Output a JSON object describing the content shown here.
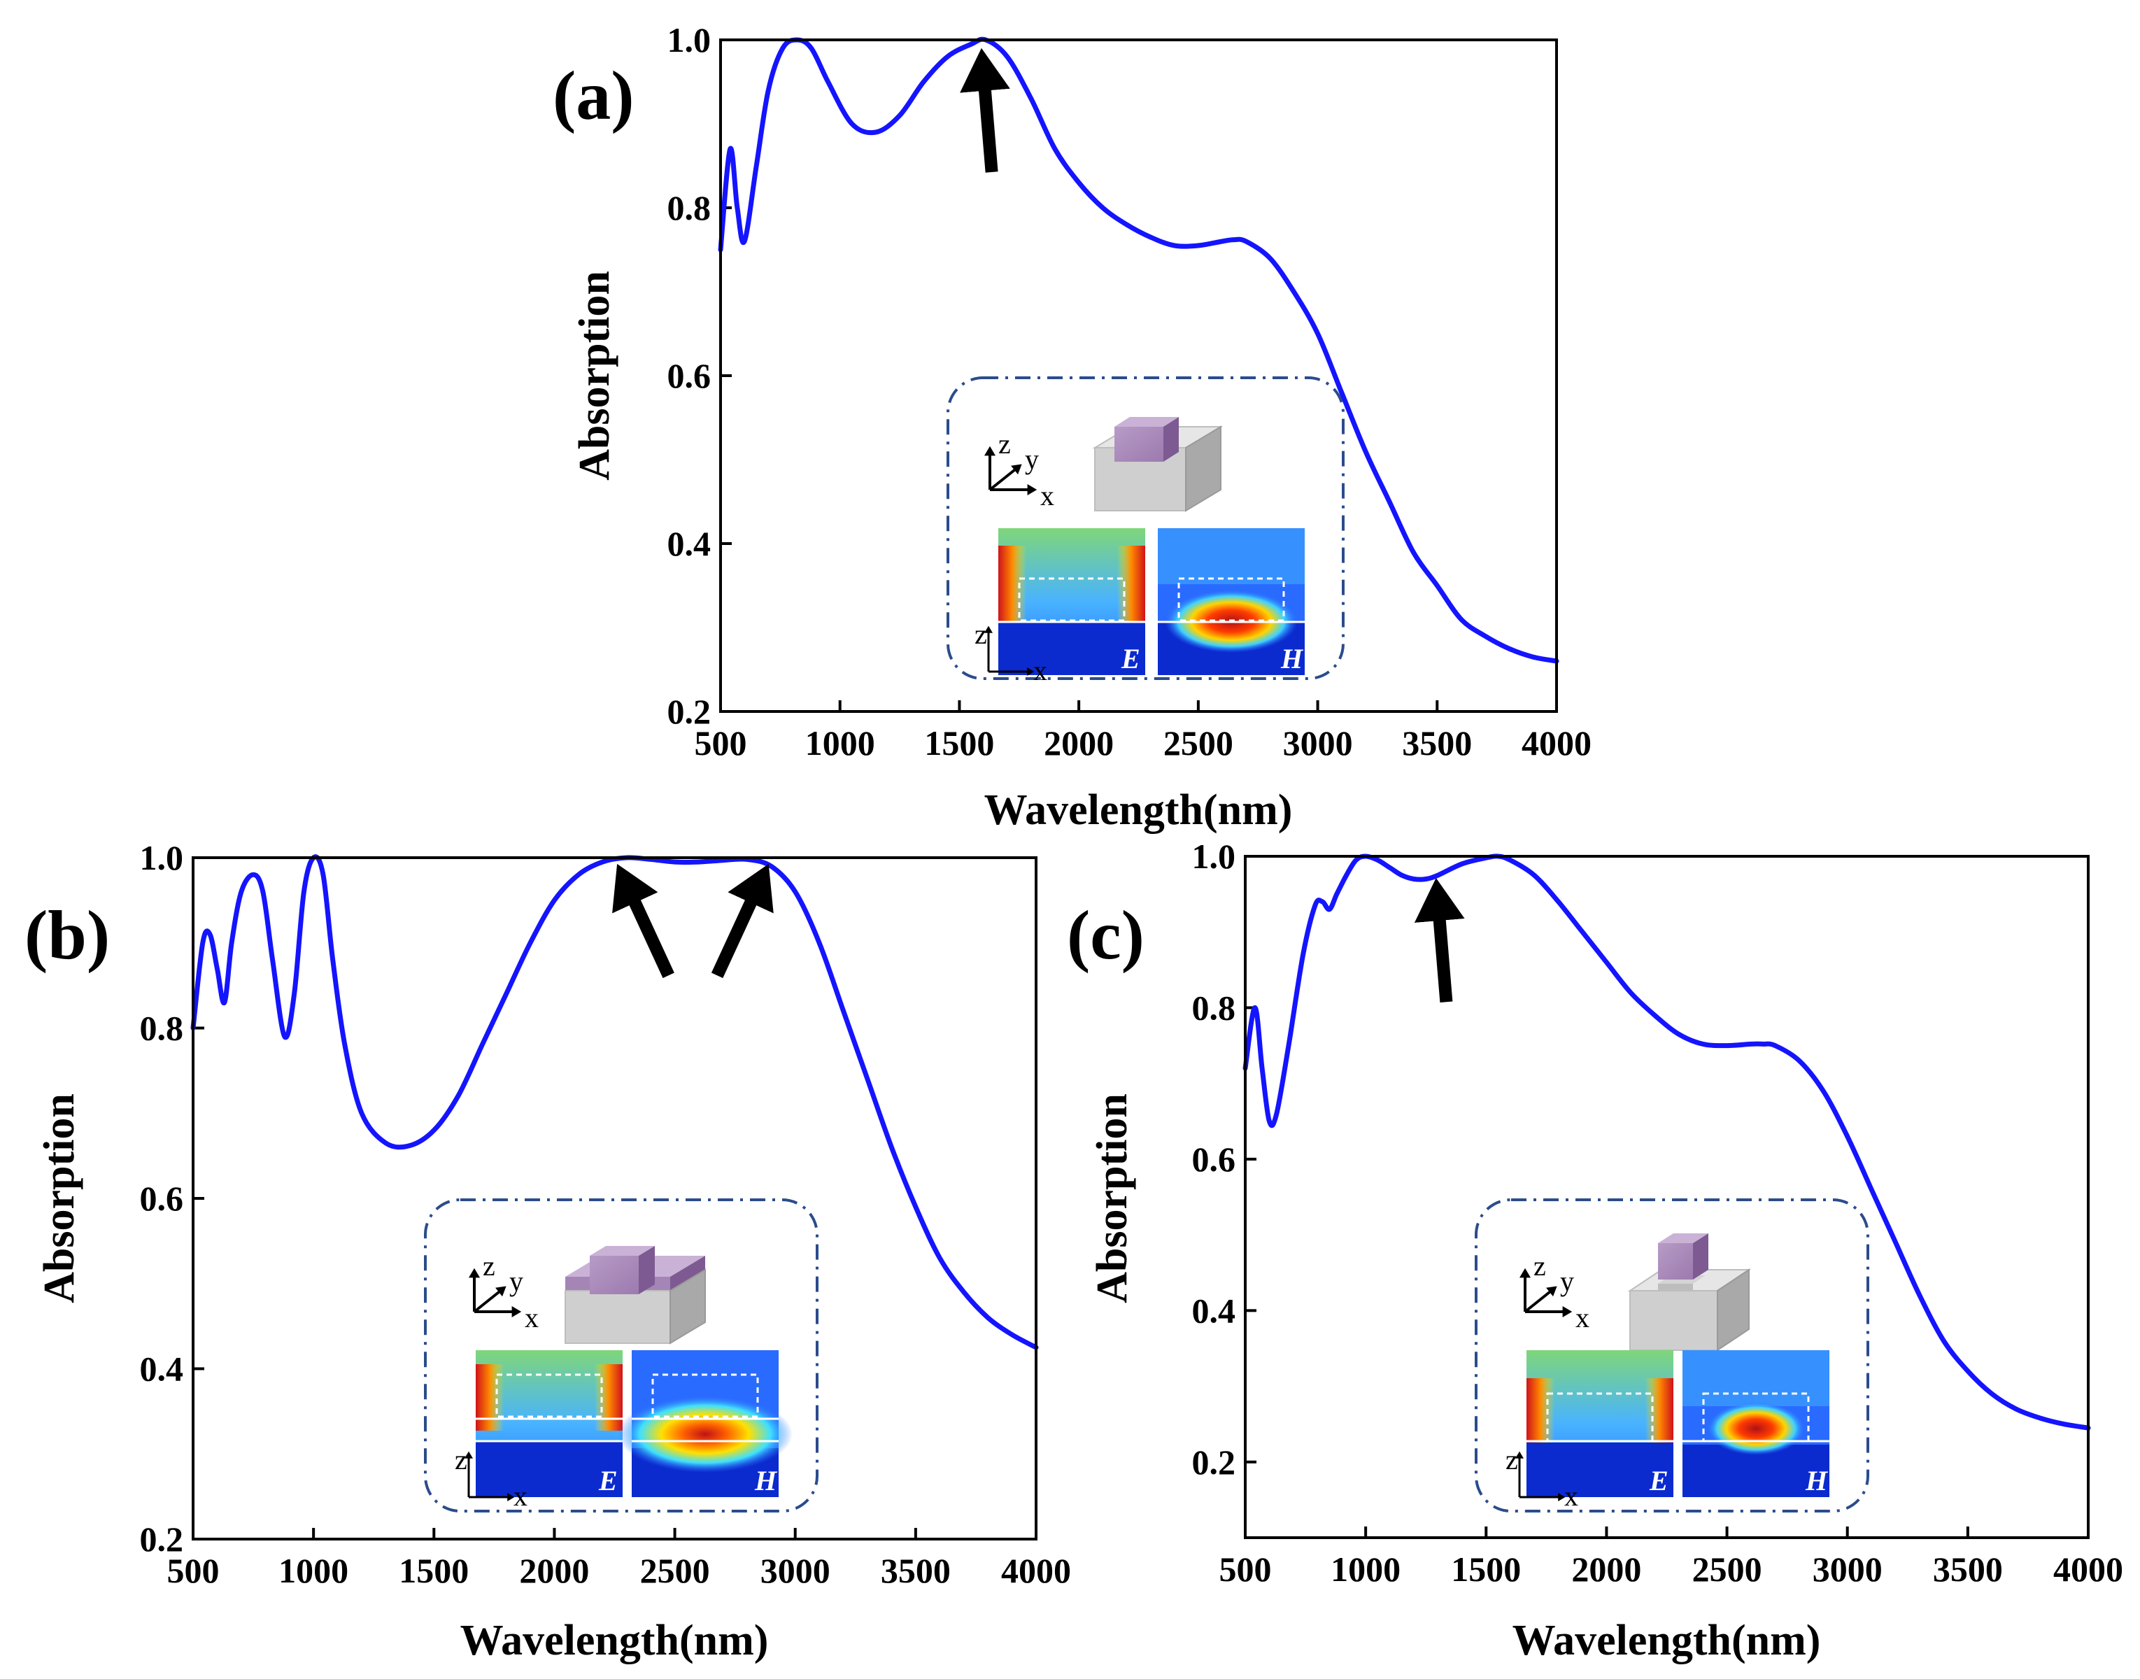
{
  "colors": {
    "curve": "#1414ff",
    "inset_border": "#2b4c8c",
    "arrow": "#000000"
  },
  "chart_data": [
    {
      "panel": "(a)",
      "type": "line",
      "xlabel": "Wavelength(nm)",
      "ylabel": "Absorption",
      "xlim": [
        500,
        4000
      ],
      "ylim": [
        0.2,
        1.0
      ],
      "xticks": [
        500,
        1000,
        1500,
        2000,
        2500,
        3000,
        3500,
        4000
      ],
      "yticks": [
        0.2,
        0.4,
        0.6,
        0.8,
        1.0
      ],
      "series": [
        {
          "name": "absorption",
          "x": [
            500,
            540,
            570,
            600,
            650,
            700,
            760,
            820,
            880,
            950,
            1050,
            1150,
            1250,
            1350,
            1450,
            1550,
            1610,
            1700,
            1800,
            1900,
            2000,
            2100,
            2200,
            2300,
            2400,
            2500,
            2600,
            2650,
            2700,
            2800,
            2900,
            3000,
            3100,
            3200,
            3300,
            3400,
            3500,
            3600,
            3700,
            3800,
            3900,
            4000
          ],
          "y": [
            0.75,
            0.87,
            0.8,
            0.76,
            0.85,
            0.94,
            0.99,
            1.0,
            0.99,
            0.95,
            0.9,
            0.89,
            0.91,
            0.95,
            0.98,
            0.995,
            1.0,
            0.98,
            0.93,
            0.87,
            0.83,
            0.8,
            0.78,
            0.765,
            0.755,
            0.755,
            0.76,
            0.762,
            0.76,
            0.74,
            0.7,
            0.65,
            0.58,
            0.51,
            0.45,
            0.39,
            0.35,
            0.31,
            0.29,
            0.275,
            0.265,
            0.26
          ]
        }
      ],
      "annotations": [
        {
          "type": "arrow",
          "x": 1600,
          "y": 0.98
        }
      ],
      "inset": {
        "axes": [
          "z",
          "y",
          "x"
        ],
        "map_axes": [
          "z",
          "x"
        ],
        "field_labels": [
          "E",
          "H"
        ]
      }
    },
    {
      "panel": "(b)",
      "type": "line",
      "xlabel": "Wavelength(nm)",
      "ylabel": "Absorption",
      "xlim": [
        500,
        4000
      ],
      "ylim": [
        0.2,
        1.0
      ],
      "xticks": [
        500,
        1000,
        1500,
        2000,
        2500,
        3000,
        3500,
        4000
      ],
      "yticks": [
        0.2,
        0.4,
        0.6,
        0.8,
        1.0
      ],
      "series": [
        {
          "name": "absorption",
          "x": [
            500,
            540,
            570,
            600,
            630,
            660,
            700,
            750,
            790,
            830,
            880,
            920,
            960,
            1000,
            1040,
            1080,
            1130,
            1200,
            1300,
            1400,
            1500,
            1600,
            1700,
            1800,
            1900,
            2000,
            2100,
            2200,
            2300,
            2400,
            2500,
            2600,
            2700,
            2800,
            2900,
            3000,
            3100,
            3200,
            3300,
            3400,
            3500,
            3600,
            3700,
            3800,
            3900,
            4000
          ],
          "y": [
            0.8,
            0.9,
            0.91,
            0.87,
            0.83,
            0.9,
            0.96,
            0.98,
            0.96,
            0.88,
            0.79,
            0.84,
            0.96,
            1.0,
            0.98,
            0.88,
            0.78,
            0.7,
            0.665,
            0.662,
            0.68,
            0.72,
            0.78,
            0.84,
            0.9,
            0.95,
            0.98,
            0.995,
            1.0,
            0.998,
            0.995,
            0.995,
            0.997,
            0.998,
            0.99,
            0.96,
            0.9,
            0.82,
            0.74,
            0.66,
            0.59,
            0.53,
            0.49,
            0.46,
            0.44,
            0.425
          ]
        }
      ],
      "annotations": [
        {
          "type": "arrow",
          "x": 2300,
          "y": 0.985
        },
        {
          "type": "arrow",
          "x": 2850,
          "y": 0.985
        }
      ],
      "inset": {
        "axes": [
          "z",
          "y",
          "x"
        ],
        "map_axes": [
          "z",
          "x"
        ],
        "field_labels": [
          "E",
          "H"
        ]
      }
    },
    {
      "panel": "(c)",
      "type": "line",
      "xlabel": "Wavelength(nm)",
      "ylabel": "Absorption",
      "xlim": [
        500,
        4000
      ],
      "ylim": [
        0.1,
        1.0
      ],
      "xticks": [
        500,
        1000,
        1500,
        2000,
        2500,
        3000,
        3500,
        4000
      ],
      "yticks": [
        0.2,
        0.4,
        0.6,
        0.8,
        1.0
      ],
      "series": [
        {
          "name": "absorption",
          "x": [
            500,
            540,
            570,
            600,
            630,
            680,
            740,
            790,
            820,
            850,
            880,
            920,
            960,
            1000,
            1050,
            1100,
            1150,
            1200,
            1250,
            1300,
            1400,
            1500,
            1550,
            1600,
            1700,
            1800,
            1900,
            2000,
            2100,
            2200,
            2300,
            2400,
            2500,
            2600,
            2650,
            2700,
            2800,
            2900,
            3000,
            3100,
            3200,
            3300,
            3400,
            3500,
            3600,
            3700,
            3800,
            3900,
            4000
          ],
          "y": [
            0.72,
            0.8,
            0.72,
            0.65,
            0.66,
            0.75,
            0.87,
            0.935,
            0.94,
            0.93,
            0.95,
            0.975,
            0.995,
            1.0,
            0.995,
            0.985,
            0.975,
            0.97,
            0.97,
            0.975,
            0.99,
            0.998,
            1.0,
            0.995,
            0.975,
            0.94,
            0.9,
            0.86,
            0.82,
            0.79,
            0.765,
            0.752,
            0.75,
            0.752,
            0.752,
            0.75,
            0.73,
            0.69,
            0.63,
            0.56,
            0.49,
            0.42,
            0.36,
            0.32,
            0.29,
            0.27,
            0.258,
            0.25,
            0.245
          ]
        }
      ],
      "annotations": [
        {
          "type": "arrow",
          "x": 1300,
          "y": 0.96
        }
      ],
      "inset": {
        "axes": [
          "z",
          "y",
          "x"
        ],
        "map_axes": [
          "z",
          "x"
        ],
        "field_labels": [
          "E",
          "H"
        ]
      }
    }
  ]
}
